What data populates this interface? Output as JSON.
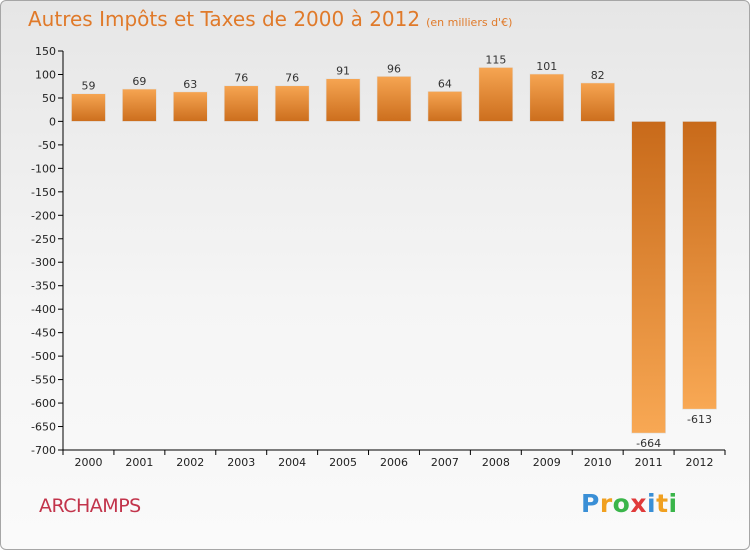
{
  "title": "Autres Impôts et Taxes de 2000 à 2012",
  "title_unit": "(en milliers d'€)",
  "town": "ARCHAMPS",
  "logo": {
    "letters": [
      "P",
      "r",
      "o",
      "x",
      "i",
      "t",
      "i"
    ],
    "colors": [
      "#3a8fd6",
      "#f0a020",
      "#3ab54a",
      "#e03a3a",
      "#3a8fd6",
      "#f0a020",
      "#3ab54a"
    ]
  },
  "chart_data": {
    "type": "bar",
    "categories": [
      "2000",
      "2001",
      "2002",
      "2003",
      "2004",
      "2005",
      "2006",
      "2007",
      "2008",
      "2009",
      "2010",
      "2011",
      "2012"
    ],
    "values": [
      59,
      69,
      63,
      76,
      76,
      91,
      96,
      64,
      115,
      101,
      82,
      -664,
      -613
    ],
    "data_labels": [
      "59",
      "69",
      "63",
      "76",
      "76",
      "91",
      "96",
      "64",
      "115",
      "101",
      "82",
      "-664",
      "-613"
    ],
    "title": "Autres Impôts et Taxes de 2000 à 2012",
    "xlabel": "",
    "ylabel": "",
    "ylim": [
      -700,
      150
    ],
    "yticks": [
      150,
      100,
      50,
      0,
      -50,
      -100,
      -150,
      -200,
      -250,
      -300,
      -350,
      -400,
      -450,
      -500,
      -550,
      -600,
      -650,
      -700
    ],
    "ytick_labels": [
      "150",
      "100",
      "50",
      "0",
      "-50",
      "-100",
      "-150",
      "-200",
      "-250",
      "-300",
      "-350",
      "-400",
      "-450",
      "-500",
      "-550",
      "-600",
      "-650",
      "-700"
    ],
    "grid": false,
    "colors": {
      "bar_light": "#f6a552",
      "bar_dark": "#cc6e1d",
      "axis": "#000000"
    }
  }
}
